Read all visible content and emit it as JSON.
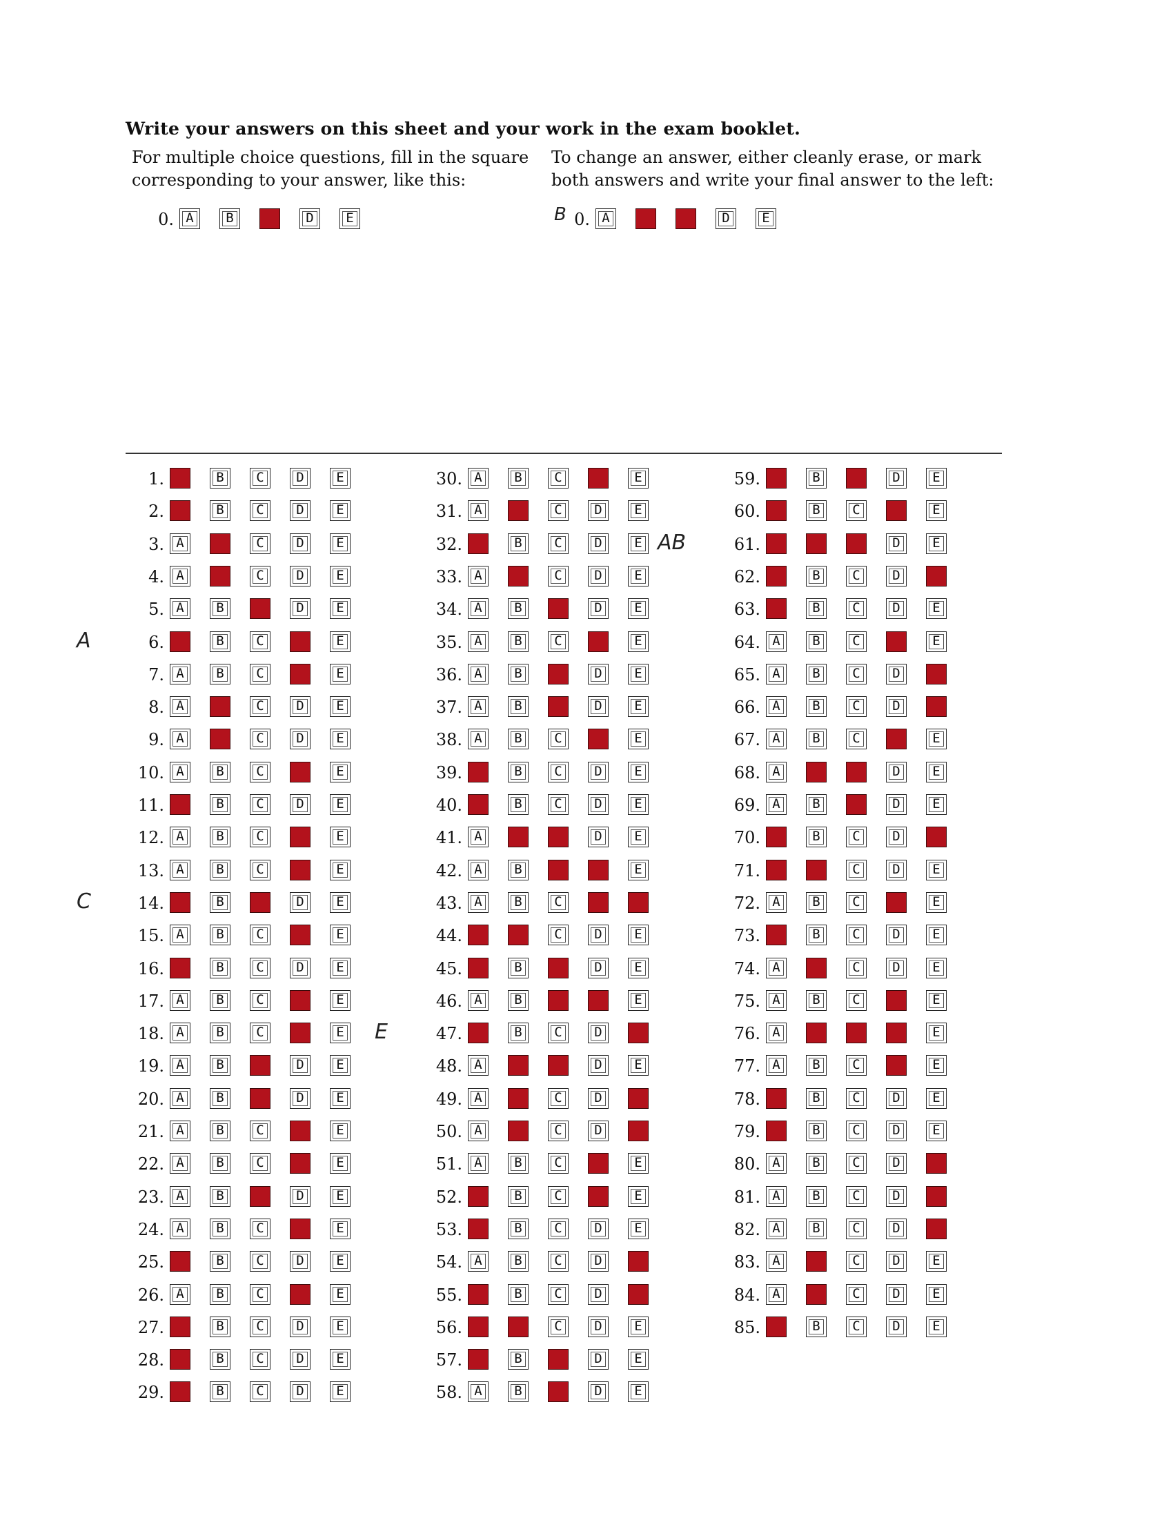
{
  "header": {
    "title": "Write your answers on this sheet and your work in the exam booklet.",
    "instruction_left": "For multiple choice questions, fill in the square corresponding to your answer, like this:",
    "instruction_right": "To change an answer, either cleanly erase, or mark both answers and write your final answer to the left:"
  },
  "examples": {
    "fill": {
      "number": "0.",
      "choices": [
        "A",
        "B",
        "C",
        "D",
        "E"
      ],
      "filled": [
        "C"
      ]
    },
    "change": {
      "note": "B",
      "number": "0.",
      "choices": [
        "A",
        "B",
        "C",
        "D",
        "E"
      ],
      "filled": [
        "B",
        "C"
      ]
    }
  },
  "choices": [
    "A",
    "B",
    "C",
    "D",
    "E"
  ],
  "questions": [
    {
      "n": "1.",
      "filled": [
        "A"
      ]
    },
    {
      "n": "2.",
      "filled": [
        "A"
      ]
    },
    {
      "n": "3.",
      "filled": [
        "B"
      ]
    },
    {
      "n": "4.",
      "filled": [
        "B"
      ]
    },
    {
      "n": "5.",
      "filled": [
        "C"
      ]
    },
    {
      "n": "6.",
      "filled": [
        "A",
        "D"
      ],
      "note": "A"
    },
    {
      "n": "7.",
      "filled": [
        "D"
      ]
    },
    {
      "n": "8.",
      "filled": [
        "B"
      ]
    },
    {
      "n": "9.",
      "filled": [
        "B"
      ]
    },
    {
      "n": "10.",
      "filled": [
        "D"
      ]
    },
    {
      "n": "11.",
      "filled": [
        "A"
      ]
    },
    {
      "n": "12.",
      "filled": [
        "D"
      ]
    },
    {
      "n": "13.",
      "filled": [
        "D"
      ]
    },
    {
      "n": "14.",
      "filled": [
        "A",
        "C"
      ],
      "note": "C"
    },
    {
      "n": "15.",
      "filled": [
        "D"
      ]
    },
    {
      "n": "16.",
      "filled": [
        "A"
      ]
    },
    {
      "n": "17.",
      "filled": [
        "D"
      ]
    },
    {
      "n": "18.",
      "filled": [
        "D"
      ]
    },
    {
      "n": "19.",
      "filled": [
        "C"
      ]
    },
    {
      "n": "20.",
      "filled": [
        "C"
      ]
    },
    {
      "n": "21.",
      "filled": [
        "D"
      ]
    },
    {
      "n": "22.",
      "filled": [
        "D"
      ]
    },
    {
      "n": "23.",
      "filled": [
        "C"
      ]
    },
    {
      "n": "24.",
      "filled": [
        "D"
      ]
    },
    {
      "n": "25.",
      "filled": [
        "A"
      ]
    },
    {
      "n": "26.",
      "filled": [
        "D"
      ]
    },
    {
      "n": "27.",
      "filled": [
        "A"
      ]
    },
    {
      "n": "28.",
      "filled": [
        "A"
      ]
    },
    {
      "n": "29.",
      "filled": [
        "A"
      ]
    },
    {
      "n": "30.",
      "filled": [
        "D"
      ]
    },
    {
      "n": "31.",
      "filled": [
        "B"
      ]
    },
    {
      "n": "32.",
      "filled": [
        "A"
      ]
    },
    {
      "n": "33.",
      "filled": [
        "B"
      ]
    },
    {
      "n": "34.",
      "filled": [
        "C"
      ]
    },
    {
      "n": "35.",
      "filled": [
        "D"
      ]
    },
    {
      "n": "36.",
      "filled": [
        "C"
      ]
    },
    {
      "n": "37.",
      "filled": [
        "C"
      ]
    },
    {
      "n": "38.",
      "filled": [
        "D"
      ]
    },
    {
      "n": "39.",
      "filled": [
        "A"
      ]
    },
    {
      "n": "40.",
      "filled": [
        "A"
      ]
    },
    {
      "n": "41.",
      "filled": [
        "B",
        "C"
      ]
    },
    {
      "n": "42.",
      "filled": [
        "C",
        "D"
      ]
    },
    {
      "n": "43.",
      "filled": [
        "D",
        "E"
      ]
    },
    {
      "n": "44.",
      "filled": [
        "A",
        "B"
      ]
    },
    {
      "n": "45.",
      "filled": [
        "A",
        "C"
      ]
    },
    {
      "n": "46.",
      "filled": [
        "C",
        "D"
      ]
    },
    {
      "n": "47.",
      "filled": [
        "A",
        "E"
      ],
      "note": "E"
    },
    {
      "n": "48.",
      "filled": [
        "B",
        "C"
      ]
    },
    {
      "n": "49.",
      "filled": [
        "B",
        "E"
      ]
    },
    {
      "n": "50.",
      "filled": [
        "B",
        "E"
      ]
    },
    {
      "n": "51.",
      "filled": [
        "D"
      ]
    },
    {
      "n": "52.",
      "filled": [
        "A",
        "D"
      ]
    },
    {
      "n": "53.",
      "filled": [
        "A"
      ]
    },
    {
      "n": "54.",
      "filled": [
        "E"
      ]
    },
    {
      "n": "55.",
      "filled": [
        "A",
        "E"
      ]
    },
    {
      "n": "56.",
      "filled": [
        "A",
        "B"
      ]
    },
    {
      "n": "57.",
      "filled": [
        "A",
        "C"
      ]
    },
    {
      "n": "58.",
      "filled": [
        "C"
      ]
    },
    {
      "n": "59.",
      "filled": [
        "A",
        "C"
      ]
    },
    {
      "n": "60.",
      "filled": [
        "A",
        "D"
      ]
    },
    {
      "n": "61.",
      "filled": [
        "A",
        "B",
        "C"
      ],
      "note": "AB"
    },
    {
      "n": "62.",
      "filled": [
        "A",
        "E"
      ]
    },
    {
      "n": "63.",
      "filled": [
        "A"
      ]
    },
    {
      "n": "64.",
      "filled": [
        "D"
      ]
    },
    {
      "n": "65.",
      "filled": [
        "E"
      ]
    },
    {
      "n": "66.",
      "filled": [
        "E"
      ]
    },
    {
      "n": "67.",
      "filled": [
        "D"
      ]
    },
    {
      "n": "68.",
      "filled": [
        "B",
        "C"
      ]
    },
    {
      "n": "69.",
      "filled": [
        "C"
      ]
    },
    {
      "n": "70.",
      "filled": [
        "A",
        "E"
      ]
    },
    {
      "n": "71.",
      "filled": [
        "A",
        "B"
      ]
    },
    {
      "n": "72.",
      "filled": [
        "D"
      ]
    },
    {
      "n": "73.",
      "filled": [
        "A"
      ]
    },
    {
      "n": "74.",
      "filled": [
        "B"
      ]
    },
    {
      "n": "75.",
      "filled": [
        "D"
      ]
    },
    {
      "n": "76.",
      "filled": [
        "B",
        "C",
        "D"
      ]
    },
    {
      "n": "77.",
      "filled": [
        "D"
      ]
    },
    {
      "n": "78.",
      "filled": [
        "A"
      ]
    },
    {
      "n": "79.",
      "filled": [
        "A"
      ]
    },
    {
      "n": "80.",
      "filled": [
        "E"
      ]
    },
    {
      "n": "81.",
      "filled": [
        "E"
      ]
    },
    {
      "n": "82.",
      "filled": [
        "E"
      ]
    },
    {
      "n": "83.",
      "filled": [
        "B"
      ]
    },
    {
      "n": "84.",
      "filled": [
        "B"
      ]
    },
    {
      "n": "85.",
      "filled": [
        "A"
      ]
    }
  ],
  "colors": {
    "fill": "#b3121c",
    "ink": "#222222"
  }
}
